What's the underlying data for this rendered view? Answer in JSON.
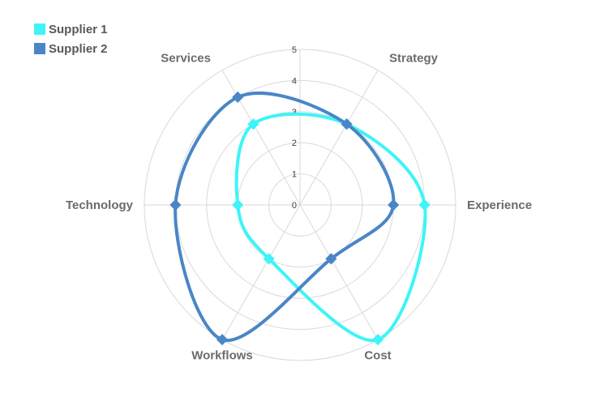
{
  "chart_data": {
    "type": "radar",
    "title": "",
    "categories": [
      "Strategy",
      "Experience",
      "Cost",
      "Workflows",
      "Technology",
      "Services"
    ],
    "rlim": [
      0,
      5
    ],
    "ticks": [
      "0",
      "1",
      "2",
      "3",
      "4",
      "5"
    ],
    "grid": true,
    "legend_position": "top-left",
    "series": [
      {
        "name": "Supplier 1",
        "color": "#3ef4f8",
        "values": [
          3,
          4,
          5,
          2,
          2,
          3
        ]
      },
      {
        "name": "Supplier 2",
        "color": "#4a86c6",
        "values": [
          3,
          3,
          2,
          5,
          4,
          4
        ]
      }
    ]
  }
}
